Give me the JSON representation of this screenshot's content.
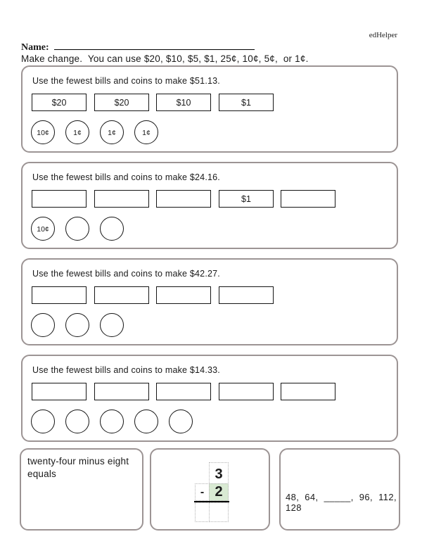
{
  "page": {
    "brand": "edHelper",
    "name_label": "Name:",
    "instructions": "Make change.  You can use $20, $10, $5, $1, 25¢, 10¢, 5¢,  or 1¢."
  },
  "problems": [
    {
      "prompt": "Use the fewest bills and coins to make $51.13.",
      "bills": [
        "$20",
        "$20",
        "$10",
        "$1"
      ],
      "coins": [
        "10¢",
        "1¢",
        "1¢",
        "1¢"
      ]
    },
    {
      "prompt": "Use the fewest bills and coins to make $24.16.",
      "bills": [
        "",
        "",
        "",
        "$1",
        ""
      ],
      "coins": [
        "10¢",
        "",
        ""
      ]
    },
    {
      "prompt": "Use the fewest bills and coins to make $42.27.",
      "bills": [
        "",
        "",
        "",
        ""
      ],
      "coins": [
        "",
        "",
        ""
      ]
    },
    {
      "prompt": "Use the fewest bills and coins to make $14.33.",
      "bills": [
        "",
        "",
        "",
        "",
        ""
      ],
      "coins": [
        "",
        "",
        "",
        "",
        ""
      ]
    }
  ],
  "bottom": {
    "word_problem": "twenty-four minus eight equals",
    "subtraction": {
      "minuend": "3",
      "operator": "-",
      "subtrahend": "2",
      "highlight_color": "#d9ead3"
    },
    "sequence": "48,  64,  _____,  96,  112,  128"
  }
}
